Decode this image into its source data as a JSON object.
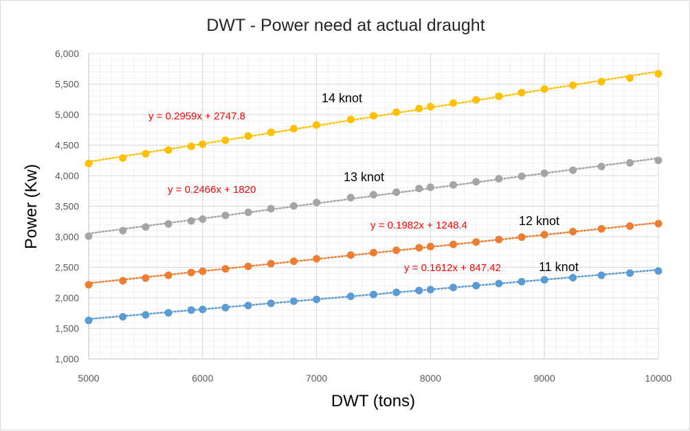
{
  "chart_data": {
    "type": "scatter",
    "title": "DWT - Power need at actual draught",
    "xlabel": "DWT (tons)",
    "ylabel": "Power (Kw)",
    "xlim": [
      5000,
      10000
    ],
    "ylim": [
      1000,
      6000
    ],
    "x_ticks": [
      "5000",
      "6000",
      "7000",
      "8000",
      "9000",
      "10000"
    ],
    "y_ticks": [
      "1,000",
      "1,500",
      "2,000",
      "2,500",
      "3,000",
      "3,500",
      "4,000",
      "4,500",
      "5,000",
      "5,500",
      "6,000"
    ],
    "grid": true,
    "x": [
      5000,
      5300,
      5500,
      5700,
      5900,
      6000,
      6200,
      6400,
      6600,
      6800,
      7000,
      7300,
      7500,
      7700,
      7900,
      8000,
      8200,
      8400,
      8600,
      8800,
      9000,
      9250,
      9500,
      9750,
      10000
    ],
    "series": [
      {
        "label": "11 knot",
        "color": "#5b9bd5",
        "equation": "y = 0.1612x + 847.42",
        "slope": 0.1612,
        "intercept": 847.42,
        "values": [
          1630,
          1690,
          1720,
          1755,
          1800,
          1810,
          1840,
          1875,
          1910,
          1945,
          1975,
          2025,
          2055,
          2090,
          2120,
          2135,
          2170,
          2200,
          2235,
          2265,
          2295,
          2330,
          2370,
          2405,
          2440
        ]
      },
      {
        "label": "12 knot",
        "color": "#ed7d31",
        "equation": "y = 0.1982x + 1248.4",
        "slope": 0.1982,
        "intercept": 1248.4,
        "values": [
          2215,
          2280,
          2325,
          2370,
          2415,
          2435,
          2475,
          2515,
          2560,
          2600,
          2640,
          2700,
          2740,
          2780,
          2820,
          2840,
          2875,
          2915,
          2955,
          2995,
          3035,
          3085,
          3130,
          3175,
          3215
        ]
      },
      {
        "label": "13 knot",
        "color": "#a5a5a5",
        "equation": "y = 0.2466x + 1820",
        "slope": 0.2466,
        "intercept": 1820,
        "values": [
          3010,
          3100,
          3160,
          3210,
          3260,
          3290,
          3350,
          3400,
          3460,
          3505,
          3560,
          3640,
          3690,
          3730,
          3790,
          3810,
          3850,
          3900,
          3950,
          3990,
          4040,
          4090,
          4150,
          4210,
          4250
        ]
      },
      {
        "label": "14 knot",
        "color": "#ffc000",
        "equation": "y = 0.2959x + 2747.8",
        "slope": 0.2959,
        "intercept": 2747.8,
        "values": [
          4200,
          4290,
          4360,
          4420,
          4480,
          4515,
          4580,
          4650,
          4710,
          4770,
          4830,
          4920,
          4980,
          5040,
          5100,
          5130,
          5190,
          5240,
          5300,
          5360,
          5420,
          5480,
          5540,
          5600,
          5670
        ]
      }
    ],
    "equation_color": "#ff0000"
  }
}
